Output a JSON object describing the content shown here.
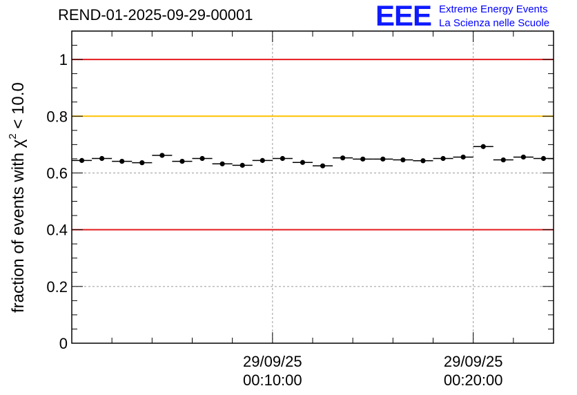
{
  "chart_data": {
    "type": "scatter",
    "title": "REND-01-2025-09-29-00001",
    "ylabel_prefix": "fraction of events with χ",
    "ylabel_sup": "2",
    "ylabel_suffix": " < 10.0",
    "xlabel": "",
    "ylim": [
      0,
      1.1
    ],
    "xlim": [
      0,
      24
    ],
    "yticks": [
      0,
      0.2,
      0.4,
      0.6,
      0.8,
      1
    ],
    "ytick_labels": [
      "0",
      "0.2",
      "0.4",
      "0.6",
      "0.8",
      "1"
    ],
    "x_major_ticks": [
      {
        "x": 10,
        "date": "29/09/25",
        "time": "00:10:00"
      },
      {
        "x": 20,
        "date": "29/09/25",
        "time": "00:20:00"
      }
    ],
    "grid": true,
    "reference_lines": [
      {
        "y": 1.0,
        "color": "#e41a1c"
      },
      {
        "y": 0.8,
        "color": "#ffc000"
      },
      {
        "y": 0.4,
        "color": "#e41a1c"
      }
    ],
    "series": [
      {
        "name": "fraction",
        "x": [
          0.5,
          1.5,
          2.5,
          3.5,
          4.5,
          5.5,
          6.5,
          7.5,
          8.5,
          9.5,
          10.5,
          11.5,
          12.5,
          13.5,
          14.5,
          15.5,
          16.5,
          17.5,
          18.5,
          19.5,
          20.5,
          21.5,
          22.5,
          23.5
        ],
        "y": [
          0.644,
          0.651,
          0.641,
          0.636,
          0.662,
          0.641,
          0.651,
          0.632,
          0.627,
          0.644,
          0.651,
          0.637,
          0.625,
          0.653,
          0.649,
          0.649,
          0.646,
          0.643,
          0.651,
          0.656,
          0.693,
          0.646,
          0.656,
          0.651
        ],
        "marker_color": "#000000"
      }
    ]
  },
  "logo": {
    "mark": "EEE",
    "line1": "Extreme Energy Events",
    "line2": "La Scienza nelle Scuole",
    "color": "#0000ff"
  }
}
